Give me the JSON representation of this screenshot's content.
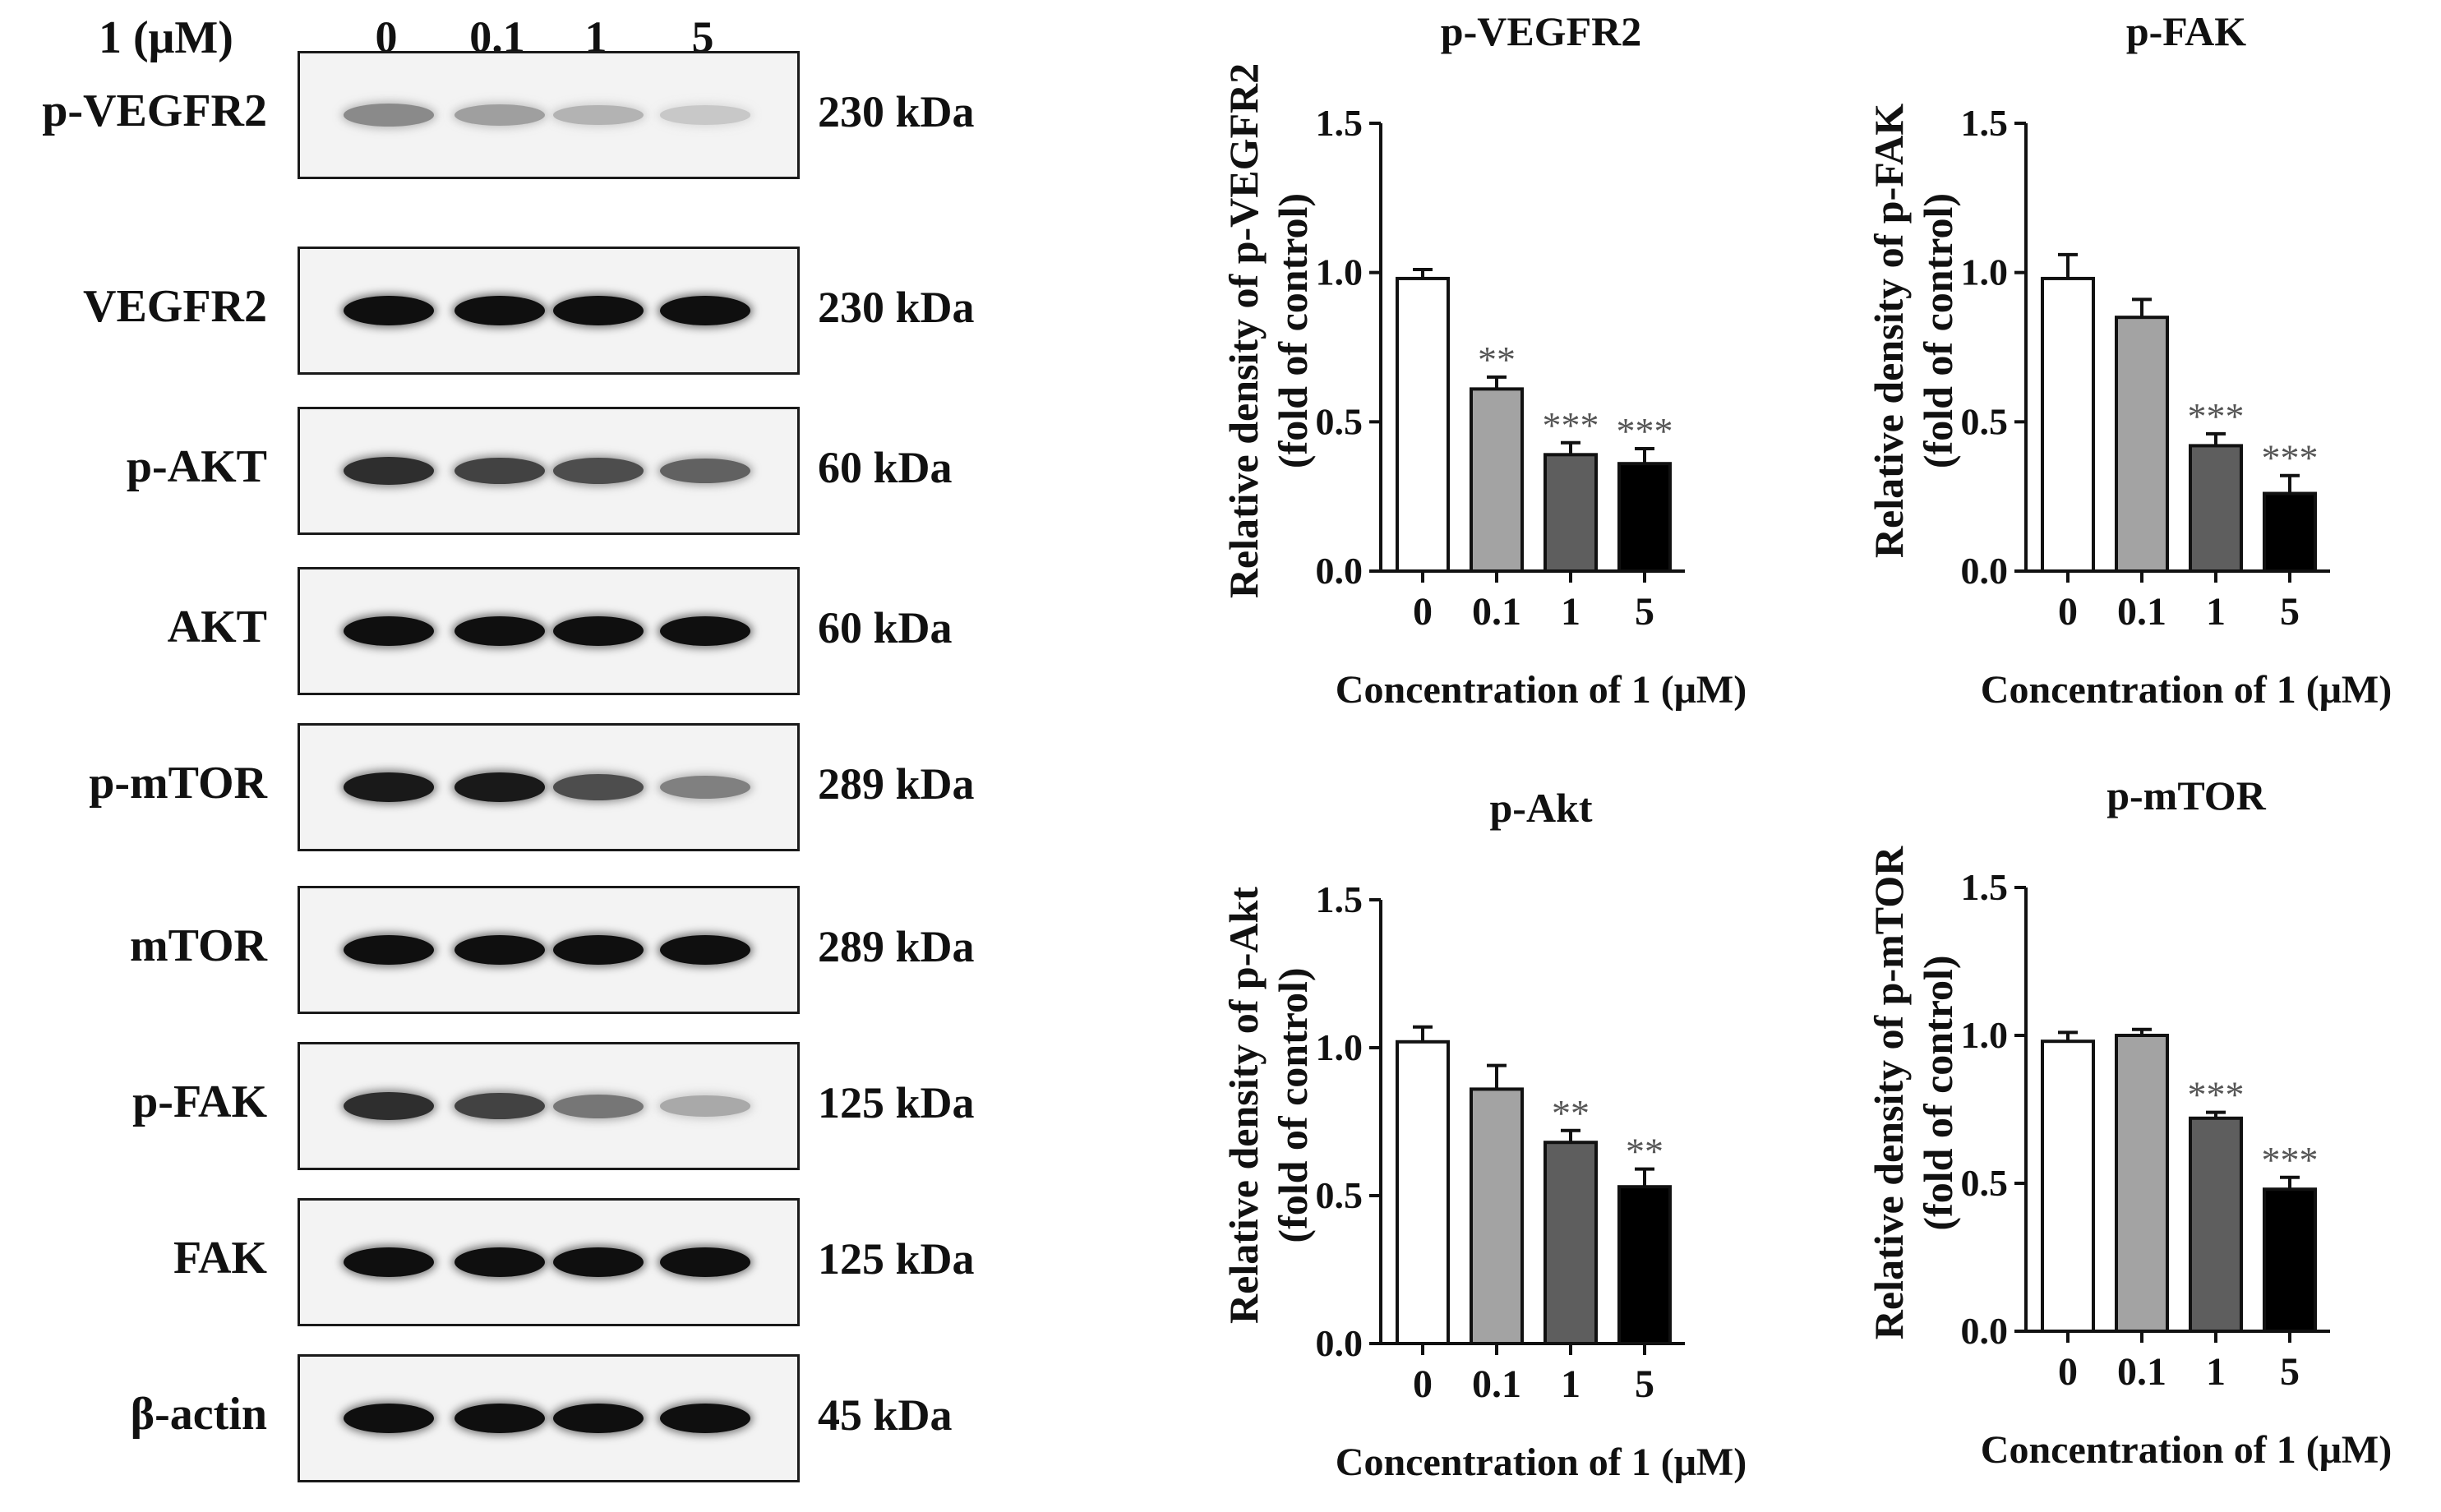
{
  "blot": {
    "treatment_label": "1 (μM)",
    "lanes": [
      "0",
      "0.1",
      "1",
      "5"
    ],
    "rows": [
      {
        "protein": "p-VEGFR2",
        "size": "230 kDa",
        "intensity": [
          0.4,
          0.3,
          0.2,
          0.1
        ]
      },
      {
        "protein": "VEGFR2",
        "size": "230 kDa",
        "intensity": [
          1.0,
          1.0,
          1.0,
          1.0
        ]
      },
      {
        "protein": "p-AKT",
        "size": "60 kDa",
        "intensity": [
          0.85,
          0.75,
          0.7,
          0.6
        ]
      },
      {
        "protein": "AKT",
        "size": "60 kDa",
        "intensity": [
          1.0,
          1.0,
          1.0,
          1.0
        ]
      },
      {
        "protein": "p-mTOR",
        "size": "289 kDa",
        "intensity": [
          0.95,
          0.95,
          0.7,
          0.45
        ]
      },
      {
        "protein": "mTOR",
        "size": "289 kDa",
        "intensity": [
          1.0,
          1.0,
          1.0,
          1.0
        ]
      },
      {
        "protein": "p-FAK",
        "size": "125 kDa",
        "intensity": [
          0.85,
          0.75,
          0.5,
          0.25
        ]
      },
      {
        "protein": "FAK",
        "size": "125 kDa",
        "intensity": [
          1.0,
          1.0,
          1.0,
          1.0
        ]
      },
      {
        "protein": "β-actin",
        "size": "45 kDa",
        "intensity": [
          1.0,
          1.0,
          1.0,
          1.0
        ]
      }
    ]
  },
  "colors": {
    "bar_fills": [
      "#ffffff",
      "#a3a3a3",
      "#5e5e5e",
      "#000000"
    ],
    "stars": "#555555"
  },
  "chart_data": [
    {
      "type": "bar",
      "title": "p-VEGFR2",
      "xlabel": "Concentration of 1 (μM)",
      "ylabel_line1": "Relative density of p-VEGFR2",
      "ylabel_line2": "(fold of control)",
      "categories": [
        "0",
        "0.1",
        "1",
        "5"
      ],
      "values": [
        0.98,
        0.61,
        0.39,
        0.36
      ],
      "errors": [
        0.03,
        0.04,
        0.04,
        0.05
      ],
      "significance": [
        "",
        "**",
        "***",
        "***"
      ],
      "ylim": [
        0,
        1.5
      ],
      "yticks": [
        "0.0",
        "0.5",
        "1.0",
        "1.5"
      ]
    },
    {
      "type": "bar",
      "title": "p-FAK",
      "xlabel": "Concentration of 1 (μM)",
      "ylabel_line1": "Relative density of p-FAK",
      "ylabel_line2": "(fold of control)",
      "categories": [
        "0",
        "0.1",
        "1",
        "5"
      ],
      "values": [
        0.98,
        0.85,
        0.42,
        0.26
      ],
      "errors": [
        0.08,
        0.06,
        0.04,
        0.06
      ],
      "significance": [
        "",
        "",
        "***",
        "***"
      ],
      "ylim": [
        0,
        1.5
      ],
      "yticks": [
        "0.0",
        "0.5",
        "1.0",
        "1.5"
      ]
    },
    {
      "type": "bar",
      "title": "p-Akt",
      "xlabel": "Concentration of 1 (μM)",
      "ylabel_line1": "Relative density of p-Akt",
      "ylabel_line2": "(fold of control)",
      "categories": [
        "0",
        "0.1",
        "1",
        "5"
      ],
      "values": [
        1.02,
        0.86,
        0.68,
        0.53
      ],
      "errors": [
        0.05,
        0.08,
        0.04,
        0.06
      ],
      "significance": [
        "",
        "",
        "**",
        "**"
      ],
      "ylim": [
        0,
        1.5
      ],
      "yticks": [
        "0.0",
        "0.5",
        "1.0",
        "1.5"
      ]
    },
    {
      "type": "bar",
      "title": "p-mTOR",
      "xlabel": "Concentration of 1 (μM)",
      "ylabel_line1": "Relative density of p-mTOR",
      "ylabel_line2": "(fold of control)",
      "categories": [
        "0",
        "0.1",
        "1",
        "5"
      ],
      "values": [
        0.98,
        1.0,
        0.72,
        0.48
      ],
      "errors": [
        0.03,
        0.02,
        0.02,
        0.04
      ],
      "significance": [
        "",
        "",
        "***",
        "***"
      ],
      "ylim": [
        0,
        1.5
      ],
      "yticks": [
        "0.0",
        "0.5",
        "1.0",
        "1.5"
      ]
    }
  ]
}
